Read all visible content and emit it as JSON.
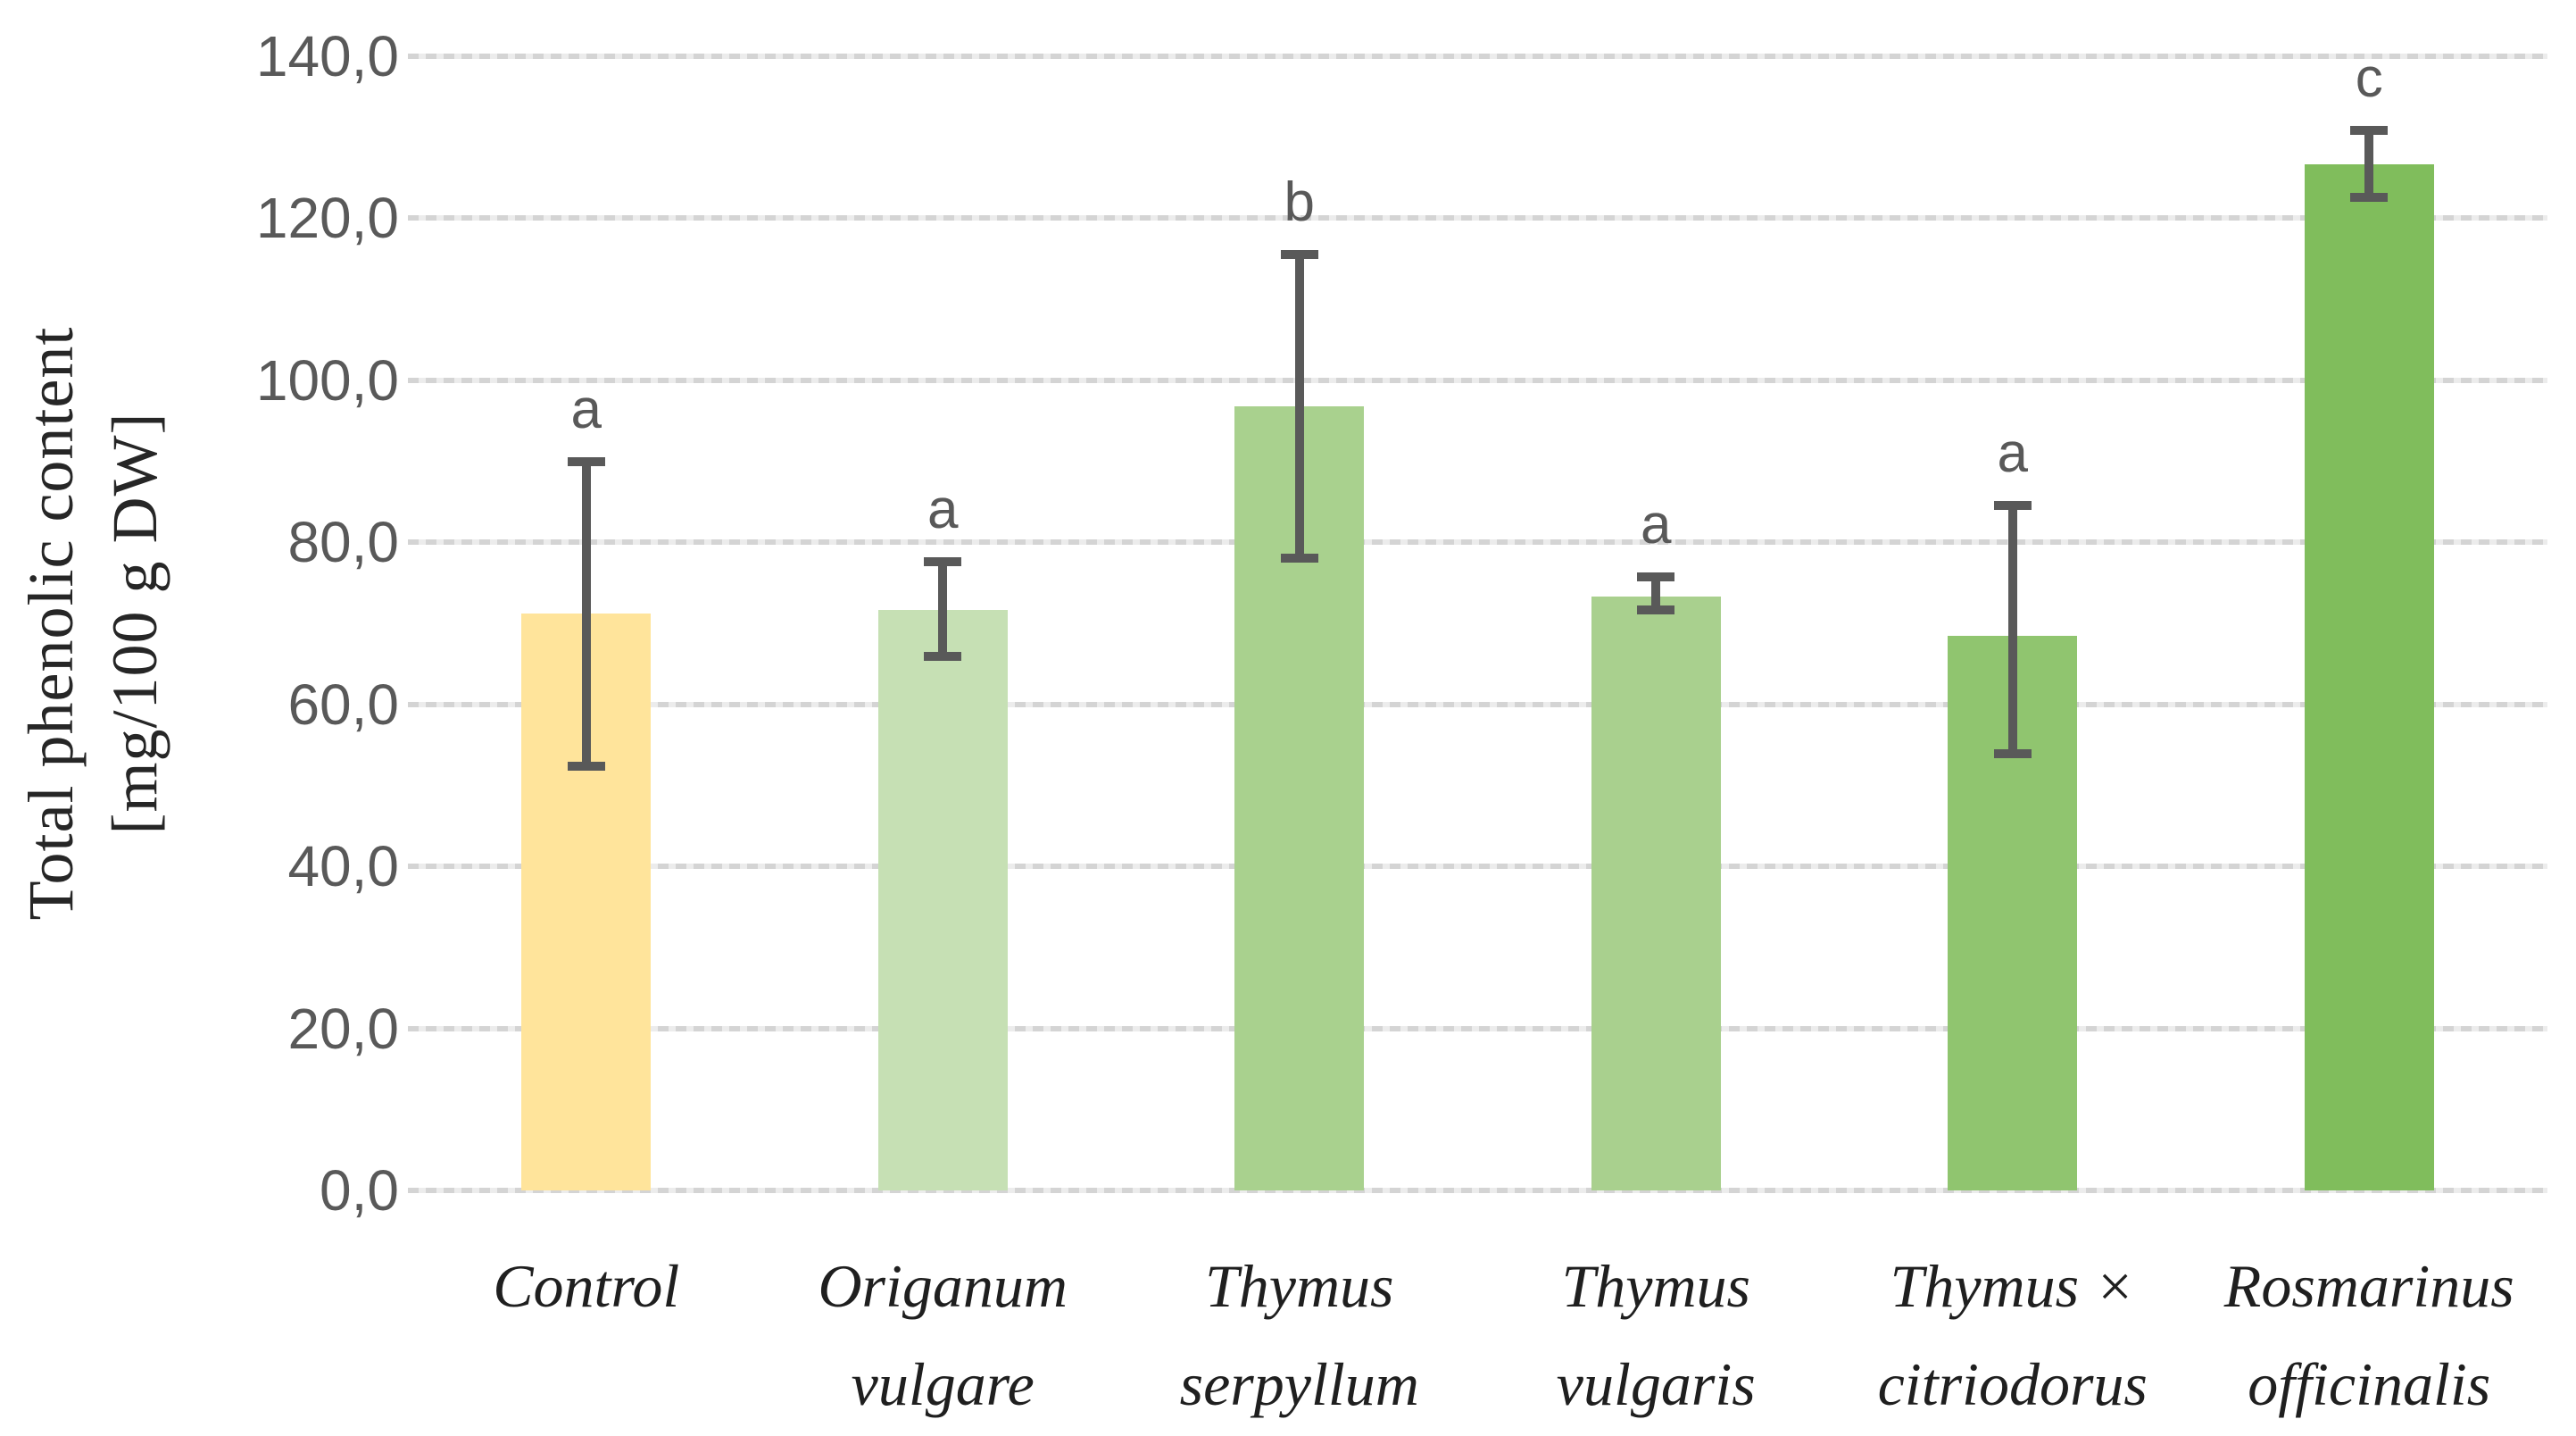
{
  "chart_data": {
    "type": "bar",
    "title": "",
    "ylabel_lines": [
      "Total phenolic content",
      "[mg/100 g DW]"
    ],
    "ylabel": "Total phenolic content [mg/100 g DW]",
    "xlabel": "",
    "ylim": [
      0,
      140
    ],
    "ytick_step": 20,
    "yticks": [
      {
        "value": 0,
        "label": "0,0"
      },
      {
        "value": 20,
        "label": "20,0"
      },
      {
        "value": 40,
        "label": "40,0"
      },
      {
        "value": 60,
        "label": "60,0"
      },
      {
        "value": 80,
        "label": "80,0"
      },
      {
        "value": 100,
        "label": "100,0"
      },
      {
        "value": 120,
        "label": "120,0"
      },
      {
        "value": 140,
        "label": "140,0"
      }
    ],
    "decimal_separator": ",",
    "grid": "horizontal",
    "legend_position": "none",
    "bars": [
      {
        "category": "Control",
        "category_lines": [
          "Control"
        ],
        "value": 71.2,
        "error_low": 52.4,
        "error_high": 89.9,
        "sig_letter": "a",
        "color": "#FFE49B"
      },
      {
        "category": "Origanum vulgare",
        "category_lines": [
          "Origanum",
          "vulgare"
        ],
        "value": 71.7,
        "error_low": 65.9,
        "error_high": 77.6,
        "sig_letter": "a",
        "color": "#C6E0B4"
      },
      {
        "category": "Thymus serpyllum",
        "category_lines": [
          "Thymus",
          "serpyllum"
        ],
        "value": 96.8,
        "error_low": 78.1,
        "error_high": 115.5,
        "sig_letter": "b",
        "color": "#A9D18E"
      },
      {
        "category": "Thymus vulgaris",
        "category_lines": [
          "Thymus",
          "vulgaris"
        ],
        "value": 73.3,
        "error_low": 71.6,
        "error_high": 75.7,
        "sig_letter": "a",
        "color": "#A9D08E"
      },
      {
        "category": "Thymus × citriodorus",
        "category_lines": [
          "Thymus ×",
          "citriodorus"
        ],
        "value": 68.5,
        "error_low": 53.9,
        "error_high": 84.6,
        "sig_letter": "a",
        "color": "#90C56F"
      },
      {
        "category": "Rosmarinus officinalis",
        "category_lines": [
          "Rosmarinus",
          "officinalis"
        ],
        "value": 126.7,
        "error_low": 122.6,
        "error_high": 130.9,
        "sig_letter": "c",
        "color": "#80BD5C"
      }
    ],
    "colors": {
      "error_bar": "#595959",
      "gridline": "#D9D9D9",
      "tick_text": "#595959",
      "axis_title_text": "#262626",
      "category_text": "#1F1F1F",
      "background": "#FFFFFF"
    }
  }
}
